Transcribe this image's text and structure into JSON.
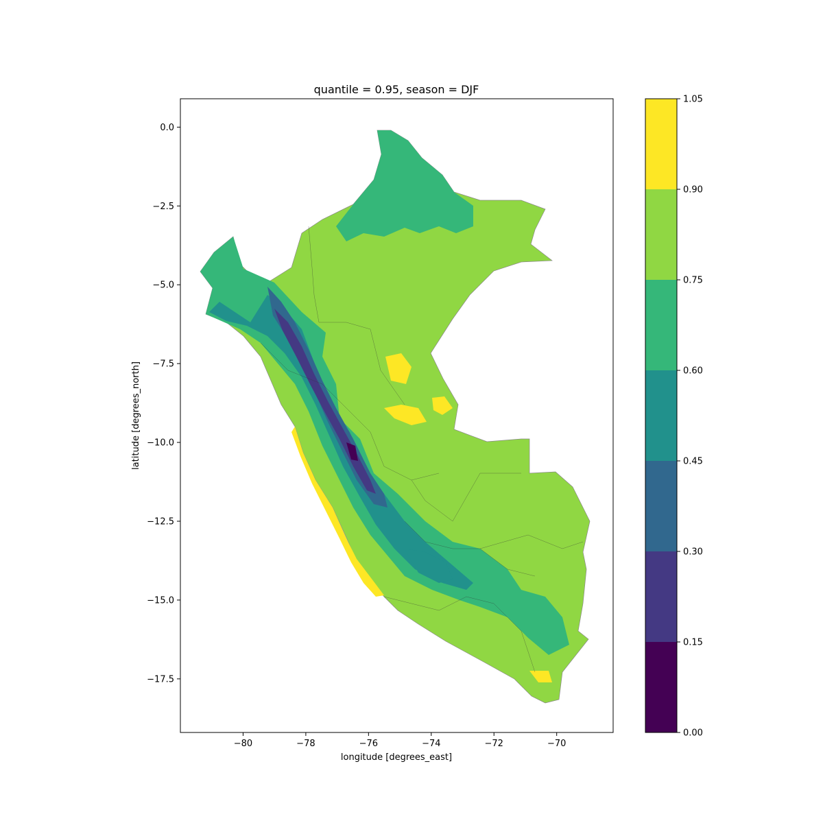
{
  "figure": {
    "title": "quantile = 0.95, season = DJF",
    "xlabel": "longitude [degrees_east]",
    "ylabel": "latitude [degrees_north]"
  },
  "chart_data": {
    "type": "heatmap",
    "title": "quantile = 0.95, season = DJF",
    "xlabel": "longitude [degrees_east]",
    "ylabel": "latitude [degrees_north]",
    "xlim": [
      -82.0,
      -68.2
    ],
    "ylim": [
      -19.2,
      0.9
    ],
    "x_ticks": [
      -80,
      -78,
      -76,
      -74,
      -72,
      -70
    ],
    "x_tick_labels": [
      "−80",
      "−78",
      "−76",
      "−74",
      "−72",
      "−70"
    ],
    "y_ticks": [
      0.0,
      -2.5,
      -5.0,
      -7.5,
      -10.0,
      -12.5,
      -15.0,
      -17.5
    ],
    "y_tick_labels": [
      "0.0",
      "−2.5",
      "−5.0",
      "−7.5",
      "−10.0",
      "−12.5",
      "−15.0",
      "−17.5"
    ],
    "colorbar": {
      "levels": [
        0.0,
        0.15,
        0.3,
        0.45,
        0.6,
        0.75,
        0.9,
        1.05
      ],
      "labels": [
        "0.00",
        "0.15",
        "0.30",
        "0.45",
        "0.60",
        "0.75",
        "0.90",
        "1.05"
      ],
      "colors": [
        "#440154",
        "#443983",
        "#31688e",
        "#21918c",
        "#35b779",
        "#90d743",
        "#fde725"
      ]
    },
    "region": "Peru",
    "dominant_band": [
      0.75,
      0.9
    ]
  }
}
